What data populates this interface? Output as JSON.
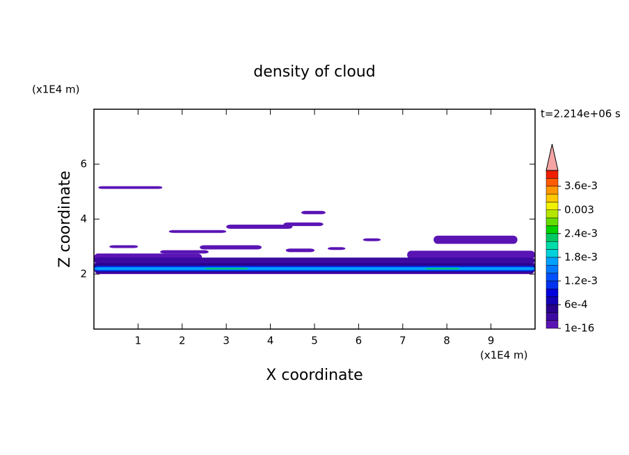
{
  "chart_data": {
    "type": "contour",
    "title": "density of cloud",
    "x_label": "X coordinate",
    "y_label": "Z coordinate",
    "x_unit": "(x1E4 m)",
    "y_unit": "(x1E4 m)",
    "time_label": "t=2.214e+06 s",
    "xlim": [
      0,
      10
    ],
    "ylim": [
      0,
      8
    ],
    "xticks": [
      1,
      2,
      3,
      4,
      5,
      6,
      7,
      8,
      9
    ],
    "yticks": [
      2,
      4,
      6
    ],
    "colorbar": {
      "lim": [
        0,
        0.004
      ],
      "ticks": [
        {
          "value": 1e-16,
          "label": "1e-16"
        },
        {
          "value": 0.0006,
          "label": "6e-4"
        },
        {
          "value": 0.0012,
          "label": "1.2e-3"
        },
        {
          "value": 0.0018,
          "label": "1.8e-3"
        },
        {
          "value": 0.0024,
          "label": "2.4e-3"
        },
        0.003,
        {
          "value": 0.0036,
          "label": "3.6e-3"
        }
      ],
      "colors": [
        "#5a14b4",
        "#3c0aa0",
        "#28008c",
        "#1400b4",
        "#0000dc",
        "#0032f0",
        "#0050ff",
        "#0078ff",
        "#00a0ff",
        "#00d2dc",
        "#00dcaa",
        "#00c864",
        "#00d200",
        "#64dc00",
        "#b4e600",
        "#f0f000",
        "#ffc800",
        "#ff9600",
        "#ff5a00",
        "#f01e00"
      ],
      "extend_color": "#f4a4a4"
    },
    "regions": [
      {
        "x": [
          0.1,
          1.55
        ],
        "z": [
          5.1,
          5.2
        ],
        "value": 0.0001
      },
      {
        "x": [
          4.7,
          5.25
        ],
        "z": [
          4.18,
          4.3
        ],
        "value": 0.0001
      },
      {
        "x": [
          1.7,
          3.0
        ],
        "z": [
          3.5,
          3.6
        ],
        "value": 0.0001
      },
      {
        "x": [
          3.0,
          4.5
        ],
        "z": [
          3.65,
          3.8
        ],
        "value": 0.0001
      },
      {
        "x": [
          4.3,
          5.2
        ],
        "z": [
          3.75,
          3.88
        ],
        "value": 0.0001
      },
      {
        "x": [
          0.35,
          1.0
        ],
        "z": [
          2.95,
          3.05
        ],
        "value": 0.0001
      },
      {
        "x": [
          2.4,
          3.8
        ],
        "z": [
          2.9,
          3.05
        ],
        "value": 0.0001
      },
      {
        "x": [
          1.5,
          2.6
        ],
        "z": [
          2.75,
          2.87
        ],
        "value": 0.0001
      },
      {
        "x": [
          4.35,
          5.0
        ],
        "z": [
          2.8,
          2.93
        ],
        "value": 0.0001
      },
      {
        "x": [
          5.3,
          5.7
        ],
        "z": [
          2.88,
          2.98
        ],
        "value": 0.0001
      },
      {
        "x": [
          6.1,
          6.5
        ],
        "z": [
          3.2,
          3.3
        ],
        "value": 0.0001
      },
      {
        "x": [
          7.7,
          9.6
        ],
        "z": [
          3.1,
          3.4
        ],
        "value": 0.0001
      },
      {
        "x": [
          7.1,
          10
        ],
        "z": [
          2.55,
          2.85
        ],
        "value": 0.0001
      },
      {
        "x": [
          0,
          2.45
        ],
        "z": [
          2.45,
          2.75
        ],
        "value": 0.0001
      },
      {
        "x": [
          0,
          10
        ],
        "z": [
          2.0,
          2.5
        ],
        "value": 0.0001
      },
      {
        "x": [
          0,
          10
        ],
        "z": [
          2.4,
          2.6
        ],
        "value": 0.0003
      },
      {
        "x": [
          0,
          10
        ],
        "z": [
          2.05,
          2.4
        ],
        "value": 0.0005
      },
      {
        "x": [
          0,
          10
        ],
        "z": [
          2.1,
          2.3
        ],
        "value": 0.0011
      },
      {
        "x": [
          0,
          10
        ],
        "z": [
          2.15,
          2.25
        ],
        "value": 0.0017
      },
      {
        "x": [
          2.5,
          3.5
        ],
        "z": [
          2.17,
          2.22
        ],
        "value": 0.0023
      },
      {
        "x": [
          7.5,
          8.3
        ],
        "z": [
          2.17,
          2.22
        ],
        "value": 0.0023
      }
    ]
  }
}
